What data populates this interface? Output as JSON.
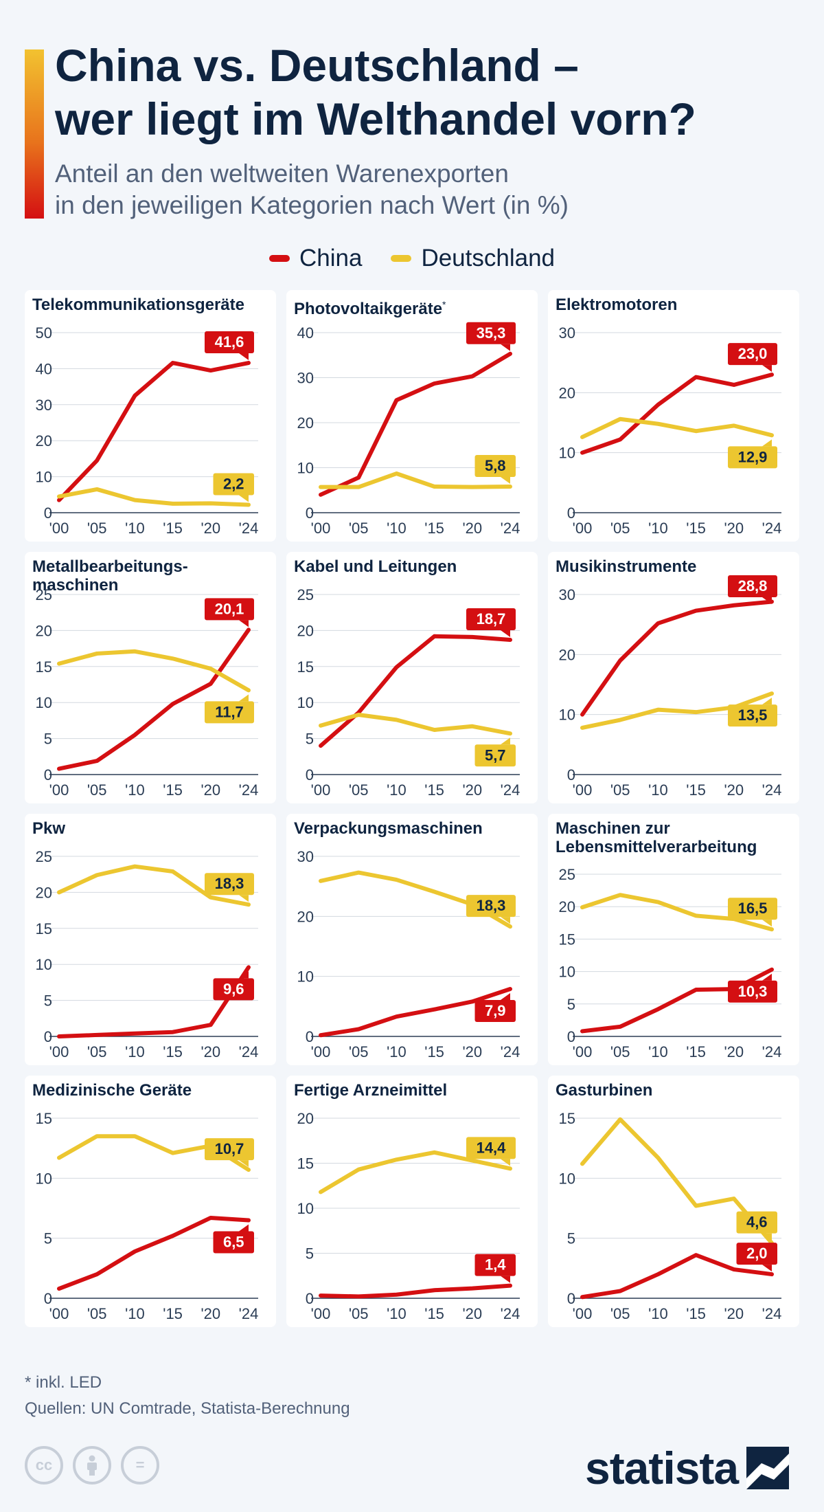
{
  "header": {
    "title_line1": "China vs. Deutschland –",
    "title_line2": "wer liegt im Welthandel vorn?",
    "subtitle_line1": "Anteil an den weltweiten Warenexporten",
    "subtitle_line2": "in den jeweiligen Kategorien nach Wert (in %)"
  },
  "legend": {
    "china": "China",
    "deutschland": "Deutschland"
  },
  "colors": {
    "china": "#d40f12",
    "deutschland": "#ecc630",
    "axis": "#2b3d55",
    "grid": "#d3d8df"
  },
  "chart_data": [
    {
      "type": "line",
      "title": "Telekommunikationsgeräte",
      "title_note": "",
      "categories": [
        "'00",
        "'05",
        "'10",
        "'15",
        "'20",
        "'24"
      ],
      "ylim": [
        0,
        50
      ],
      "yticks": [
        0,
        10,
        20,
        30,
        40,
        50
      ],
      "series": [
        {
          "name": "China",
          "values": [
            3.5,
            14.5,
            32.5,
            41.6,
            39.5,
            41.6
          ],
          "end_label": "41,6"
        },
        {
          "name": "Deutschland",
          "values": [
            4.5,
            6.5,
            3.5,
            2.5,
            2.6,
            2.2
          ],
          "end_label": "2,2"
        }
      ]
    },
    {
      "type": "line",
      "title": "Photovoltaikgeräte",
      "title_note": "*",
      "categories": [
        "'00",
        "'05",
        "'10",
        "'15",
        "'20",
        "'24"
      ],
      "ylim": [
        0,
        40
      ],
      "yticks": [
        0,
        10,
        20,
        30,
        40
      ],
      "series": [
        {
          "name": "China",
          "values": [
            4.0,
            7.8,
            25.0,
            28.7,
            30.3,
            35.3
          ],
          "end_label": "35,3"
        },
        {
          "name": "Deutschland",
          "values": [
            5.7,
            5.7,
            8.7,
            5.8,
            5.7,
            5.8
          ],
          "end_label": "5,8"
        }
      ]
    },
    {
      "type": "line",
      "title": "Elektromotoren",
      "title_note": "",
      "categories": [
        "'00",
        "'05",
        "'10",
        "'15",
        "'20",
        "'24"
      ],
      "ylim": [
        0,
        30
      ],
      "yticks": [
        0,
        10,
        20,
        30
      ],
      "series": [
        {
          "name": "China",
          "values": [
            10.0,
            12.2,
            18.0,
            22.6,
            21.3,
            23.0
          ],
          "end_label": "23,0"
        },
        {
          "name": "Deutschland",
          "values": [
            12.6,
            15.6,
            14.8,
            13.6,
            14.5,
            12.9
          ],
          "end_label": "12,9"
        }
      ]
    },
    {
      "type": "line",
      "title": "Metallbearbeitungs-maschinen",
      "title_note": "",
      "categories": [
        "'00",
        "'05",
        "'10",
        "'15",
        "'20",
        "'24"
      ],
      "ylim": [
        0,
        25
      ],
      "yticks": [
        0,
        5,
        10,
        15,
        20,
        25
      ],
      "series": [
        {
          "name": "China",
          "values": [
            0.8,
            1.9,
            5.5,
            9.8,
            12.6,
            20.1
          ],
          "end_label": "20,1"
        },
        {
          "name": "Deutschland",
          "values": [
            15.4,
            16.8,
            17.1,
            16.1,
            14.7,
            11.7
          ],
          "end_label": "11,7"
        }
      ]
    },
    {
      "type": "line",
      "title": "Kabel und Leitungen",
      "title_note": "",
      "categories": [
        "'00",
        "'05",
        "'10",
        "'15",
        "'20",
        "'24"
      ],
      "ylim": [
        0,
        25
      ],
      "yticks": [
        0,
        5,
        10,
        15,
        20,
        25
      ],
      "series": [
        {
          "name": "China",
          "values": [
            4.0,
            8.6,
            14.9,
            19.2,
            19.1,
            18.7
          ],
          "end_label": "18,7"
        },
        {
          "name": "Deutschland",
          "values": [
            6.8,
            8.3,
            7.6,
            6.2,
            6.7,
            5.7
          ],
          "end_label": "5,7"
        }
      ]
    },
    {
      "type": "line",
      "title": "Musikinstrumente",
      "title_note": "",
      "categories": [
        "'00",
        "'05",
        "'10",
        "'15",
        "'20",
        "'24"
      ],
      "ylim": [
        0,
        30
      ],
      "yticks": [
        0,
        10,
        20,
        30
      ],
      "series": [
        {
          "name": "China",
          "values": [
            10.0,
            19.0,
            25.2,
            27.3,
            28.2,
            28.8
          ],
          "end_label": "28,8"
        },
        {
          "name": "Deutschland",
          "values": [
            7.8,
            9.1,
            10.8,
            10.4,
            11.2,
            13.5
          ],
          "end_label": "13,5"
        }
      ]
    },
    {
      "type": "line",
      "title": "Pkw",
      "title_note": "",
      "categories": [
        "'00",
        "'05",
        "'10",
        "'15",
        "'20",
        "'24"
      ],
      "ylim": [
        0,
        25
      ],
      "yticks": [
        0,
        5,
        10,
        15,
        20,
        25
      ],
      "series": [
        {
          "name": "China",
          "values": [
            0.0,
            0.2,
            0.4,
            0.6,
            1.6,
            9.6
          ],
          "end_label": "9,6"
        },
        {
          "name": "Deutschland",
          "values": [
            20.0,
            22.4,
            23.6,
            22.9,
            19.3,
            18.3
          ],
          "end_label": "18,3"
        }
      ]
    },
    {
      "type": "line",
      "title": "Verpackungsmaschinen",
      "title_note": "",
      "categories": [
        "'00",
        "'05",
        "'10",
        "'15",
        "'20",
        "'24"
      ],
      "ylim": [
        0,
        30
      ],
      "yticks": [
        0,
        10,
        20,
        30
      ],
      "series": [
        {
          "name": "China",
          "values": [
            0.2,
            1.2,
            3.3,
            4.5,
            5.8,
            7.9
          ],
          "end_label": "7,9"
        },
        {
          "name": "Deutschland",
          "values": [
            25.9,
            27.3,
            26.1,
            24.1,
            22.0,
            18.3
          ],
          "end_label": "18,3"
        }
      ]
    },
    {
      "type": "line",
      "title": "Maschinen zur Lebensmittelverarbeitung",
      "title_note": "",
      "categories": [
        "'00",
        "'05",
        "'10",
        "'15",
        "'20",
        "'24"
      ],
      "ylim": [
        0,
        25
      ],
      "yticks": [
        0,
        5,
        10,
        15,
        20,
        25
      ],
      "series": [
        {
          "name": "China",
          "values": [
            0.8,
            1.5,
            4.2,
            7.2,
            7.3,
            10.3
          ],
          "end_label": "10,3"
        },
        {
          "name": "Deutschland",
          "values": [
            19.9,
            21.8,
            20.7,
            18.6,
            18.1,
            16.5
          ],
          "end_label": "16,5"
        }
      ]
    },
    {
      "type": "line",
      "title": "Medizinische Geräte",
      "title_note": "",
      "categories": [
        "'00",
        "'05",
        "'10",
        "'15",
        "'20",
        "'24"
      ],
      "ylim": [
        0,
        15
      ],
      "yticks": [
        0,
        5,
        10,
        15
      ],
      "series": [
        {
          "name": "China",
          "values": [
            0.8,
            2.0,
            3.9,
            5.2,
            6.7,
            6.5
          ],
          "end_label": "6,5"
        },
        {
          "name": "Deutschland",
          "values": [
            11.7,
            13.5,
            13.5,
            12.1,
            12.7,
            10.7
          ],
          "end_label": "10,7"
        }
      ]
    },
    {
      "type": "line",
      "title": "Fertige Arzneimittel",
      "title_note": "",
      "categories": [
        "'00",
        "'05",
        "'10",
        "'15",
        "'20",
        "'24"
      ],
      "ylim": [
        0,
        20
      ],
      "yticks": [
        0,
        5,
        10,
        15,
        20
      ],
      "series": [
        {
          "name": "China",
          "values": [
            0.3,
            0.2,
            0.4,
            0.9,
            1.1,
            1.4
          ],
          "end_label": "1,4"
        },
        {
          "name": "Deutschland",
          "values": [
            11.8,
            14.3,
            15.4,
            16.2,
            15.3,
            14.4
          ],
          "end_label": "14,4"
        }
      ]
    },
    {
      "type": "line",
      "title": "Gasturbinen",
      "title_note": "",
      "categories": [
        "'00",
        "'05",
        "'10",
        "'15",
        "'20",
        "'24"
      ],
      "ylim": [
        0,
        15
      ],
      "yticks": [
        0,
        5,
        10,
        15
      ],
      "series": [
        {
          "name": "China",
          "values": [
            0.1,
            0.6,
            2.0,
            3.6,
            2.4,
            2.0
          ],
          "end_label": "2,0"
        },
        {
          "name": "Deutschland",
          "values": [
            11.2,
            14.9,
            11.7,
            7.7,
            8.3,
            4.6
          ],
          "end_label": "4,6"
        }
      ]
    }
  ],
  "footer": {
    "footnote": "* inkl. LED",
    "sources": "Quellen: UN Comtrade, Statista-Berechnung",
    "license_icons": [
      "cc-icon",
      "by-icon",
      "nd-icon"
    ],
    "cc_glyph": "cc",
    "nd_glyph": "=",
    "brand": "statista"
  }
}
